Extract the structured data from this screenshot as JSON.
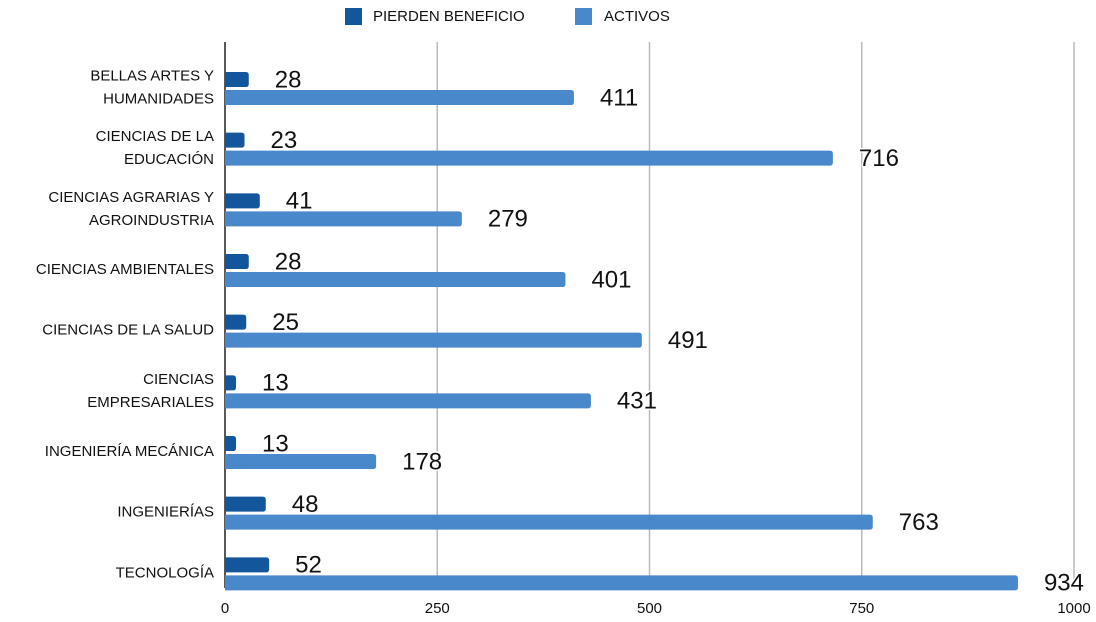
{
  "chart_data": {
    "type": "bar",
    "orientation": "horizontal",
    "categories": [
      "BELLAS ARTES Y\nHUMANIDADES",
      "CIENCIAS DE LA\nEDUCACIÓN",
      "CIENCIAS AGRARIAS Y\nAGROINDUSTRIA",
      "CIENCIAS AMBIENTALES",
      "CIENCIAS DE LA SALUD",
      "CIENCIAS\nEMPRESARIALES",
      "INGENIERÍA MECÁNICA",
      "INGENIERÍAS",
      "TECNOLOGÍA"
    ],
    "series": [
      {
        "name": "PIERDEN BENEFICIO",
        "color": "#13569b",
        "values": [
          28,
          23,
          41,
          28,
          25,
          13,
          13,
          48,
          52
        ]
      },
      {
        "name": "ACTIVOS",
        "color": "#4a88cc",
        "values": [
          411,
          716,
          279,
          401,
          491,
          431,
          178,
          763,
          934
        ]
      }
    ],
    "xlim": [
      0,
      1000
    ],
    "xticks": [
      0,
      250,
      500,
      750,
      1000
    ],
    "grid": true,
    "legend": "top"
  }
}
